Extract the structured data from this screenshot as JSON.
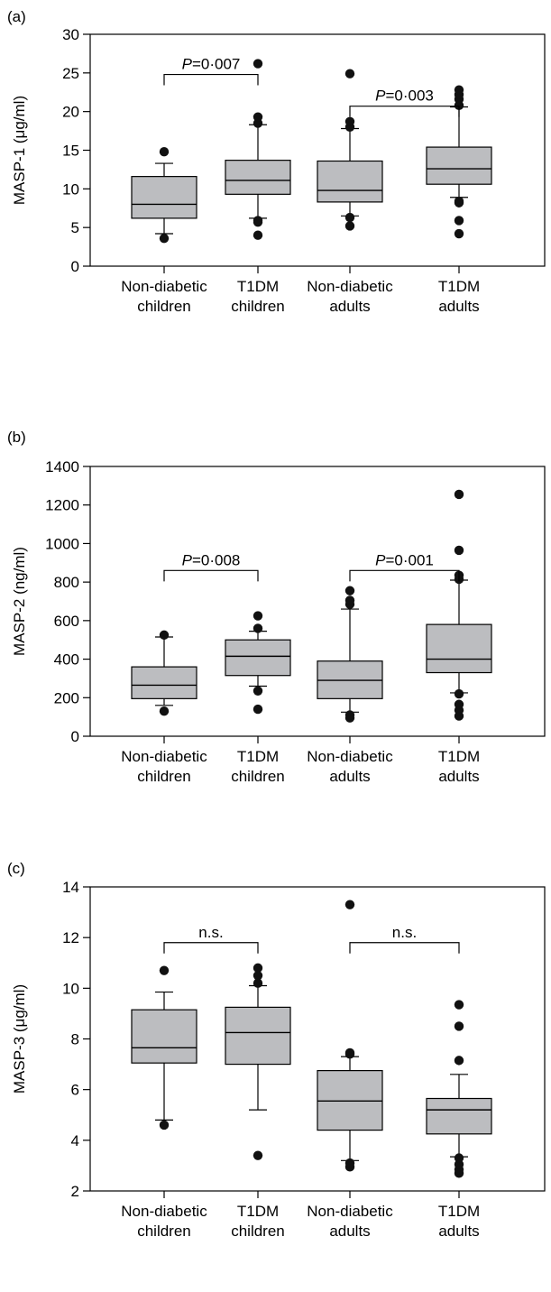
{
  "chart_data": [
    {
      "type": "box",
      "panel_label": "(a)",
      "ylabel": "MASP-1 (μg/ml)",
      "ylim": [
        0,
        30
      ],
      "yticks": [
        0,
        5,
        10,
        15,
        20,
        25,
        30
      ],
      "categories": [
        {
          "line1": "Non-diabetic",
          "line2": "children"
        },
        {
          "line1": "T1DM",
          "line2": "children"
        },
        {
          "line1": "Non-diabetic",
          "line2": "adults"
        },
        {
          "line1": "T1DM",
          "line2": "adults"
        }
      ],
      "boxes": [
        {
          "whisker_low": 4.2,
          "q1": 6.2,
          "median": 8.0,
          "q3": 11.6,
          "whisker_high": 13.3,
          "outliers": [
            3.6,
            14.8
          ]
        },
        {
          "whisker_low": 6.2,
          "q1": 9.3,
          "median": 11.1,
          "q3": 13.7,
          "whisker_high": 18.3,
          "outliers": [
            4.0,
            5.7,
            5.9,
            18.5,
            19.3,
            26.2
          ]
        },
        {
          "whisker_low": 6.5,
          "q1": 8.3,
          "median": 9.8,
          "q3": 13.6,
          "whisker_high": 17.8,
          "outliers": [
            5.2,
            6.3,
            18.0,
            18.7,
            24.9
          ]
        },
        {
          "whisker_low": 8.9,
          "q1": 10.6,
          "median": 12.6,
          "q3": 15.4,
          "whisker_high": 20.6,
          "outliers": [
            4.2,
            5.9,
            8.2,
            8.4,
            20.8,
            21.6,
            22.2,
            22.8
          ]
        }
      ],
      "comparisons": [
        {
          "from": 0,
          "to": 1,
          "level": 24.8,
          "prefix": "P",
          "label": "=0·007"
        },
        {
          "from": 2,
          "to": 3,
          "level": 20.7,
          "prefix": "P",
          "label": "=0·003"
        }
      ]
    },
    {
      "type": "box",
      "panel_label": "(b)",
      "ylabel": "MASP-2 (ng/ml)",
      "ylim": [
        0,
        1400
      ],
      "yticks": [
        0,
        200,
        400,
        600,
        800,
        1000,
        1200,
        1400
      ],
      "categories": [
        {
          "line1": "Non-diabetic",
          "line2": "children"
        },
        {
          "line1": "T1DM",
          "line2": "children"
        },
        {
          "line1": "Non-diabetic",
          "line2": "adults"
        },
        {
          "line1": "T1DM",
          "line2": "adults"
        }
      ],
      "boxes": [
        {
          "whisker_low": 160,
          "q1": 195,
          "median": 265,
          "q3": 360,
          "whisker_high": 515,
          "outliers": [
            130,
            525
          ]
        },
        {
          "whisker_low": 260,
          "q1": 315,
          "median": 415,
          "q3": 500,
          "whisker_high": 545,
          "outliers": [
            140,
            235,
            560,
            625
          ]
        },
        {
          "whisker_low": 125,
          "q1": 195,
          "median": 290,
          "q3": 390,
          "whisker_high": 660,
          "outliers": [
            95,
            110,
            685,
            705,
            755
          ]
        },
        {
          "whisker_low": 225,
          "q1": 330,
          "median": 400,
          "q3": 580,
          "whisker_high": 810,
          "outliers": [
            105,
            135,
            165,
            220,
            815,
            835,
            965,
            1255
          ]
        }
      ],
      "comparisons": [
        {
          "from": 0,
          "to": 1,
          "level": 860,
          "prefix": "P",
          "label": "=0·008"
        },
        {
          "from": 2,
          "to": 3,
          "level": 860,
          "prefix": "P",
          "label": "=0·001"
        }
      ]
    },
    {
      "type": "box",
      "panel_label": "(c)",
      "ylabel": "MASP-3 (μg/ml)",
      "ylim": [
        2,
        14
      ],
      "yticks": [
        2,
        4,
        6,
        8,
        10,
        12,
        14
      ],
      "categories": [
        {
          "line1": "Non-diabetic",
          "line2": "children"
        },
        {
          "line1": "T1DM",
          "line2": "children"
        },
        {
          "line1": "Non-diabetic",
          "line2": "adults"
        },
        {
          "line1": "T1DM",
          "line2": "adults"
        }
      ],
      "boxes": [
        {
          "whisker_low": 4.8,
          "q1": 7.05,
          "median": 7.65,
          "q3": 9.15,
          "whisker_high": 9.85,
          "outliers": [
            4.6,
            10.7
          ]
        },
        {
          "whisker_low": 5.2,
          "q1": 7.0,
          "median": 8.25,
          "q3": 9.25,
          "whisker_high": 10.1,
          "outliers": [
            3.4,
            10.2,
            10.5,
            10.8
          ]
        },
        {
          "whisker_low": 3.2,
          "q1": 4.4,
          "median": 5.55,
          "q3": 6.75,
          "whisker_high": 7.3,
          "outliers": [
            2.95,
            3.1,
            7.4,
            7.45,
            13.3
          ]
        },
        {
          "whisker_low": 3.35,
          "q1": 4.25,
          "median": 5.2,
          "q3": 5.65,
          "whisker_high": 6.6,
          "outliers": [
            2.7,
            2.85,
            3.05,
            3.3,
            7.15,
            8.5,
            9.35
          ]
        }
      ],
      "comparisons": [
        {
          "from": 0,
          "to": 1,
          "level": 11.8,
          "prefix": "",
          "label": "n.s."
        },
        {
          "from": 2,
          "to": 3,
          "level": 11.8,
          "prefix": "",
          "label": "n.s."
        }
      ]
    }
  ],
  "colors": {
    "box_fill": "#bcbdc0",
    "stroke": "#000000",
    "outlier": "#111111"
  }
}
